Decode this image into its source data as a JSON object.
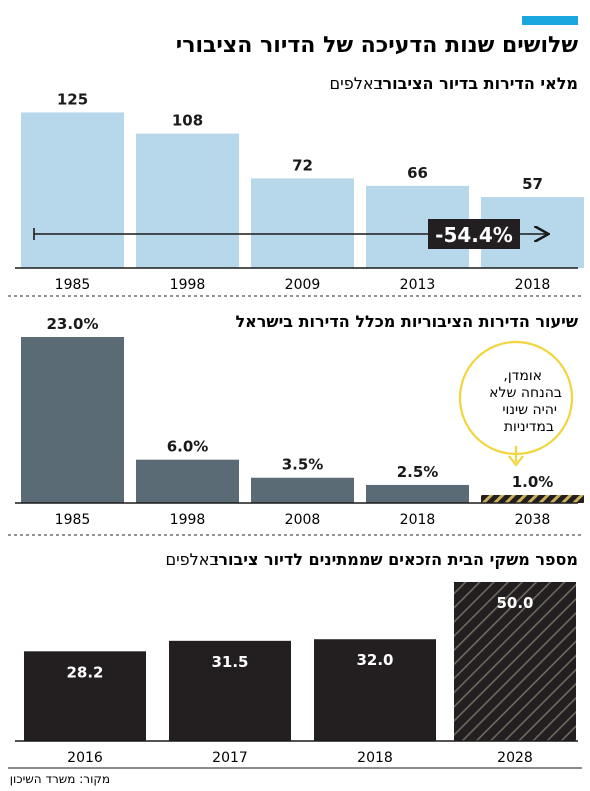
{
  "title": "שלושים שנות הדעיכה של הדיור הציבורי",
  "source": "מקור: משרד השיכון",
  "colors": {
    "accent": "#1aa7e0",
    "light_bar": "#b7d8ea",
    "slate_bar": "#5a6b76",
    "dark_bar": "#231f20",
    "forecast_stripe": "#c9b25a",
    "callout": "#f2d53c"
  },
  "chart_data": [
    {
      "type": "bar",
      "title": "מלאי הדירות בדיור הציבורי",
      "title_unit": "באלפים",
      "categories": [
        "1985",
        "1998",
        "2009",
        "2013",
        "2018"
      ],
      "values": [
        125,
        108,
        72,
        66,
        57
      ],
      "value_labels": [
        "125",
        "108",
        "72",
        "66",
        "57"
      ],
      "ylim": [
        0,
        135
      ],
      "annotation": "-54.4%"
    },
    {
      "type": "bar",
      "title": "שיעור הדירות הציבוריות מכלל הדירות בישראל",
      "categories": [
        "1985",
        "1998",
        "2008",
        "2018",
        "2038"
      ],
      "values": [
        23.0,
        6.0,
        3.5,
        2.5,
        1.0
      ],
      "value_labels": [
        "23.0%",
        "6.0%",
        "3.5%",
        "2.5%",
        "1.0%"
      ],
      "forecast_index": 4,
      "ylim": [
        0,
        23.0
      ],
      "callout_lines": [
        "אומדן,",
        "בהנחה שלא",
        "יהיה שינוי",
        "במדיניות"
      ]
    },
    {
      "type": "bar",
      "title": "מספר משקי הבית הזכאים שממתינים לדיור ציבורי",
      "title_unit": "באלפים",
      "categories": [
        "2016",
        "2017",
        "2018",
        "2028"
      ],
      "values": [
        28.2,
        31.5,
        32.0,
        50.0
      ],
      "value_labels": [
        "28.2",
        "31.5",
        "32.0",
        "50.0"
      ],
      "forecast_index": 3,
      "ylim": [
        0,
        50.0
      ]
    }
  ]
}
